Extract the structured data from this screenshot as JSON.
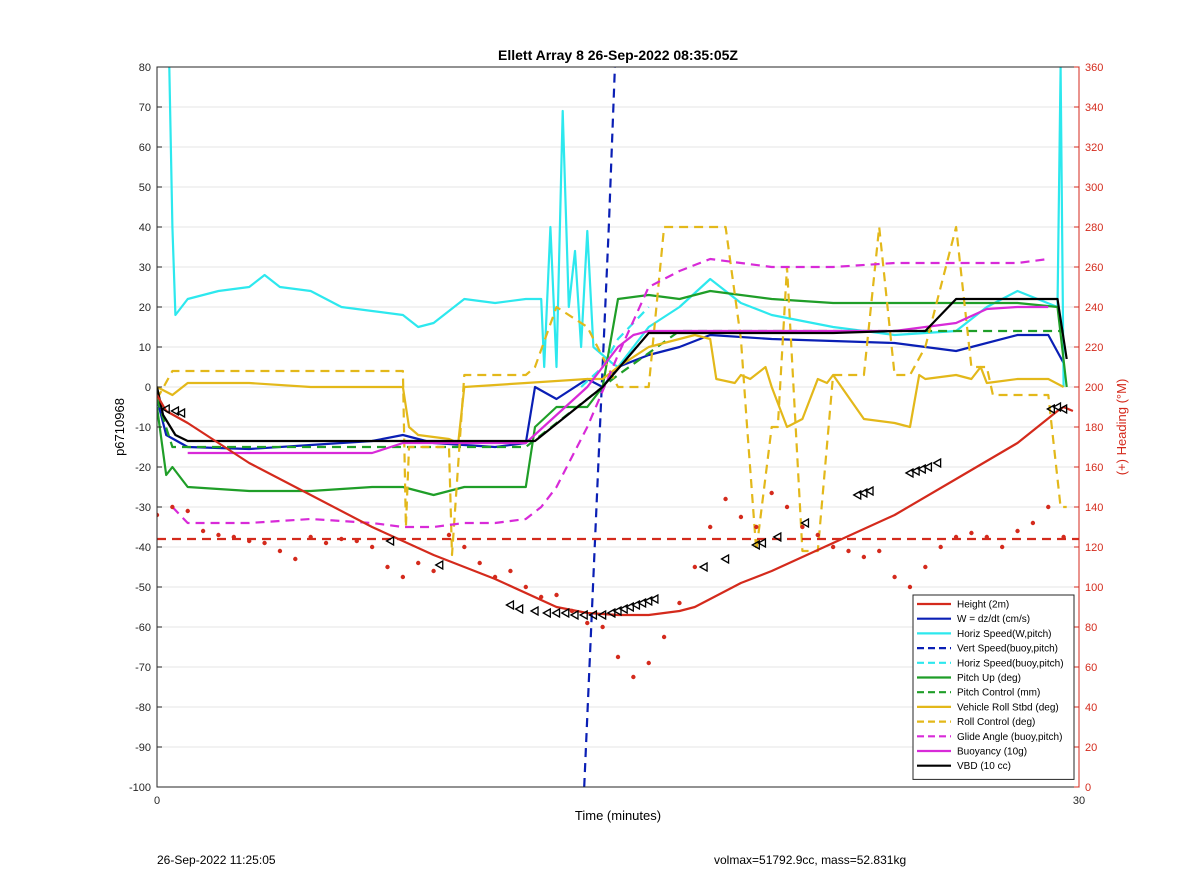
{
  "chart_data": {
    "type": "line",
    "title": "Ellett Array 8 26-Sep-2022 08:35:05Z",
    "xlabel": "Time (minutes)",
    "ylabel": "p6710968",
    "y2label": "(+) Heading (°M)",
    "xlim": [
      0,
      30
    ],
    "ylim": [
      -100,
      80
    ],
    "y2lim": [
      0,
      360
    ],
    "xticks": [
      "0",
      "30"
    ],
    "yticks": [
      "80",
      "70",
      "60",
      "50",
      "40",
      "30",
      "20",
      "10",
      "0",
      "-10",
      "-20",
      "-30",
      "-40",
      "-50",
      "-60",
      "-70",
      "-80",
      "-90",
      "-100"
    ],
    "y2ticks": [
      "360",
      "340",
      "320",
      "300",
      "280",
      "260",
      "240",
      "220",
      "200",
      "180",
      "160",
      "140",
      "120",
      "100",
      "80",
      "60",
      "40",
      "20",
      "0"
    ],
    "grid": true,
    "legend_position": "bottom-right",
    "series": [
      {
        "name": "Height (2m)",
        "color": "#d42a1c",
        "dash": "solid",
        "x": [
          0,
          0.3,
          1,
          3,
          5,
          7,
          9,
          11,
          13,
          14,
          15,
          16,
          17,
          17.5,
          18,
          19,
          20,
          22,
          24,
          26,
          28,
          29.3,
          29.5,
          29.8
        ],
        "y": [
          -2,
          -6,
          -9,
          -19,
          -27,
          -35,
          -42,
          -48,
          -55,
          -56.5,
          -57,
          -57,
          -56,
          -55,
          -53,
          -49,
          -46,
          -39,
          -32,
          -23,
          -14,
          -6,
          -5,
          -6
        ]
      },
      {
        "name": "W = dz/dt (cm/s)",
        "color": "#0a1fb5",
        "dash": "solid",
        "x": [
          0,
          0.3,
          1,
          3,
          5,
          7,
          8,
          9,
          10,
          11,
          12,
          12.3,
          13,
          14,
          14.5,
          15,
          16,
          17,
          18,
          20,
          22,
          24,
          26,
          28,
          29,
          29.5
        ],
        "y": [
          -3,
          -12,
          -15,
          -15.5,
          -14.5,
          -13.5,
          -12,
          -14,
          -14.5,
          -15,
          -14,
          0,
          -3,
          2,
          0,
          5,
          8,
          10,
          13,
          12,
          11.5,
          11,
          9,
          13,
          13,
          6
        ]
      },
      {
        "name": "Horiz Speed(W,pitch)",
        "color": "#2de8ee",
        "dash": "solid",
        "x": [
          0.4,
          0.5,
          0.6,
          1,
          2,
          3,
          3.5,
          4,
          5,
          6,
          7,
          8,
          8.5,
          9,
          10,
          11,
          12,
          12.5,
          12.6,
          12.8,
          13,
          13.2,
          13.4,
          13.6,
          13.8,
          14,
          14.2,
          14.5,
          14.8,
          15,
          16,
          17,
          18,
          19,
          20,
          22,
          24,
          26,
          27,
          28,
          29.3,
          29.4,
          29.5
        ],
        "y": [
          80,
          40,
          18,
          22,
          24,
          25,
          28,
          25,
          24,
          20,
          19,
          18,
          15,
          16,
          22,
          21,
          22,
          22,
          5,
          40,
          5,
          69,
          20,
          34,
          10,
          39,
          10,
          8,
          6,
          5,
          15,
          20,
          27,
          21,
          18,
          15,
          13,
          14,
          20,
          24,
          20,
          80,
          0
        ]
      },
      {
        "name": "Vert Speed(buoy,pitch)",
        "color": "#0a1fb5",
        "dash": "dashed",
        "x": [
          13.9,
          14.5,
          14.7,
          14.9
        ],
        "y": [
          -100,
          5,
          40,
          80
        ]
      },
      {
        "name": "Horiz Speed(buoy,pitch)",
        "color": "#2de8ee",
        "dash": "dashed",
        "x": [
          13.8,
          14.5,
          15,
          16
        ],
        "y": [
          0,
          5,
          12,
          20
        ]
      },
      {
        "name": "Pitch Up (deg)",
        "color": "#1f9e28",
        "dash": "solid",
        "x": [
          0,
          0.3,
          0.5,
          1,
          3,
          5,
          7,
          8,
          9,
          10,
          11,
          12,
          12.3,
          13,
          14,
          14.5,
          15,
          16,
          17,
          18,
          20,
          22,
          24,
          26,
          28,
          29.3,
          29.6
        ],
        "y": [
          -5,
          -22,
          -20,
          -25,
          -26,
          -26,
          -25,
          -25,
          -27,
          -25,
          -25,
          -25,
          -10,
          -5,
          -5,
          0,
          22,
          23,
          22,
          24,
          22,
          21,
          21,
          21,
          21,
          20,
          0
        ]
      },
      {
        "name": "Pitch Control (mm)",
        "color": "#1f9e28",
        "dash": "dashed",
        "x": [
          0,
          0.5,
          1,
          12,
          12.5,
          14.5,
          15,
          17,
          29,
          29.5
        ],
        "y": [
          -3,
          -15,
          -15,
          -15,
          -12,
          0,
          3,
          14,
          14,
          14
        ]
      },
      {
        "name": "Vehicle Roll Stbd (deg)",
        "color": "#e3b81a",
        "dash": "solid",
        "x": [
          0,
          0.5,
          1,
          3,
          5,
          7,
          8,
          8.2,
          8.5,
          9.5,
          9.8,
          10,
          12,
          14,
          14.5,
          15,
          16,
          17.5,
          18,
          18.2,
          18.8,
          19,
          19.3,
          19.8,
          20,
          20.5,
          21,
          21.5,
          21.8,
          22,
          23,
          24,
          24.5,
          24.8,
          25,
          26,
          26.5,
          26.8,
          27,
          28,
          29,
          29.5
        ],
        "y": [
          0,
          -2,
          1,
          1,
          0,
          0,
          0,
          -10,
          -12,
          -13,
          -14,
          0,
          1,
          2,
          2,
          5,
          10,
          13,
          12,
          2,
          1,
          3,
          2,
          5,
          0,
          -10,
          -8,
          2,
          1,
          3,
          -8,
          -9,
          -10,
          3,
          2,
          3,
          2,
          5,
          1,
          2,
          2,
          0
        ]
      },
      {
        "name": "Roll Control (deg)",
        "color": "#e3b81a",
        "dash": "dashed",
        "x": [
          0,
          0.5,
          8,
          8.1,
          8.2,
          9.5,
          9.6,
          10,
          12,
          12.3,
          13,
          14,
          15,
          16,
          16.5,
          17,
          17.5,
          18.5,
          19,
          19.2,
          19.5,
          20,
          20.2,
          20.5,
          21,
          21.5,
          22,
          23,
          23.5,
          24,
          24.5,
          25,
          26,
          26.5,
          27,
          27.2,
          28,
          29,
          29.4,
          29.6
        ],
        "y": [
          -3,
          4,
          4,
          -35,
          -15,
          -15,
          -42,
          3,
          3,
          5,
          20,
          15,
          0,
          0,
          40,
          40,
          40,
          40,
          12,
          -10,
          -41,
          -10,
          -10,
          30,
          -41,
          -41,
          3,
          3,
          40,
          3,
          3,
          10,
          40,
          5,
          5,
          -2,
          -2,
          -2,
          -30,
          -30
        ]
      },
      {
        "name": "Glide Angle (buoy,pitch)",
        "color": "#d82ad8",
        "dash": "dashed",
        "x": [
          0.5,
          1,
          3,
          5,
          7,
          8,
          9,
          10,
          11,
          12,
          12.5,
          13,
          14,
          15,
          16,
          17,
          18,
          20,
          22,
          24,
          26,
          28,
          29
        ],
        "y": [
          -30,
          -34,
          -34,
          -33,
          -34,
          -35,
          -35,
          -34,
          -34,
          -33,
          -30,
          -25,
          -10,
          8,
          25,
          29,
          32,
          30,
          30,
          31,
          31,
          31,
          32
        ]
      },
      {
        "name": "Buoyancy (10g)",
        "color": "#d82ad8",
        "dash": "solid",
        "x": [
          1,
          7,
          8,
          12,
          13,
          14,
          15,
          15.5,
          16,
          18,
          20,
          24,
          25,
          26,
          27,
          28,
          29
        ],
        "y": [
          -16.5,
          -16.5,
          -14,
          -14,
          -7,
          0,
          10,
          13,
          14,
          14,
          14,
          14,
          15,
          16,
          19.5,
          20,
          20
        ]
      },
      {
        "name": "VBD (10 cc)",
        "color": "#000000",
        "dash": "solid",
        "x": [
          0,
          0.2,
          0.6,
          1,
          12,
          12.3,
          14.5,
          16,
          17,
          22,
          24,
          25,
          25.5,
          26,
          29,
          29.3,
          29.6
        ],
        "y": [
          0,
          -7,
          -12,
          -13.5,
          -13.5,
          -13.5,
          0,
          13.5,
          13.5,
          13.5,
          14,
          14,
          18,
          22,
          22,
          22,
          7
        ]
      },
      {
        "name": "",
        "color": "#d42a1c",
        "dash": "dashed",
        "axis": "right",
        "x": [
          0,
          30
        ],
        "y": [
          124,
          124
        ]
      },
      {
        "name": "",
        "color": "#d42a1c",
        "dash": "dots",
        "axis": "right",
        "x": [
          0,
          0.5,
          1,
          1.5,
          2,
          2.5,
          3,
          3.5,
          4,
          4.5,
          5,
          5.5,
          6,
          6.5,
          7,
          7.5,
          8,
          8.5,
          9,
          9.5,
          10,
          10.5,
          11,
          11.5,
          12,
          12.5,
          13,
          13.5,
          14,
          14.5,
          15,
          15.5,
          16,
          16.5,
          17,
          17.5,
          18,
          18.5,
          19,
          19.5,
          20,
          20.5,
          21,
          21.5,
          22,
          22.5,
          23,
          23.5,
          24,
          24.5,
          25,
          25.5,
          26,
          26.5,
          27,
          27.5,
          28,
          28.5,
          29,
          29.5
        ],
        "y": [
          136,
          140,
          138,
          128,
          126,
          125,
          123,
          122,
          118,
          114,
          125,
          122,
          124,
          123,
          120,
          110,
          105,
          112,
          108,
          126,
          120,
          112,
          105,
          108,
          100,
          95,
          96,
          88,
          82,
          80,
          65,
          55,
          62,
          75,
          92,
          110,
          130,
          144,
          135,
          130,
          147,
          140,
          130,
          126,
          120,
          118,
          115,
          118,
          105,
          100,
          110,
          120,
          125,
          127,
          125,
          120,
          128,
          132,
          140,
          125
        ]
      }
    ],
    "markers": {
      "symbol": "triangle",
      "color": "#000000",
      "x": [
        0.3,
        0.6,
        0.8,
        7.6,
        9.2,
        11.5,
        11.8,
        12.3,
        12.7,
        13,
        13.3,
        13.6,
        13.9,
        14.2,
        14.5,
        14.8,
        15,
        15.2,
        15.4,
        15.6,
        15.8,
        16,
        16.2,
        17.8,
        18.5,
        19.5,
        19.7,
        20.2,
        21.1,
        22.8,
        23,
        23.2,
        24.5,
        24.7,
        24.9,
        25.1,
        25.4,
        29.1,
        29.3,
        29.5
      ],
      "y": [
        -5.5,
        -6,
        -6.5,
        -38.5,
        -44.5,
        -54.5,
        -55.5,
        -56,
        -56.5,
        -56.5,
        -56.5,
        -57,
        -57,
        -57,
        -57,
        -56.5,
        -56,
        -55.5,
        -55,
        -54.5,
        -54,
        -53.5,
        -53,
        -45,
        -43,
        -39.5,
        -39,
        -37.5,
        -34,
        -27,
        -26.5,
        -26,
        -21.5,
        -21,
        -20.5,
        -20,
        -19,
        -5.5,
        -5,
        -5.5
      ]
    }
  },
  "footer": {
    "left": "26-Sep-2022 11:25:05",
    "right": "volmax=51792.9cc, mass=52.831kg"
  }
}
